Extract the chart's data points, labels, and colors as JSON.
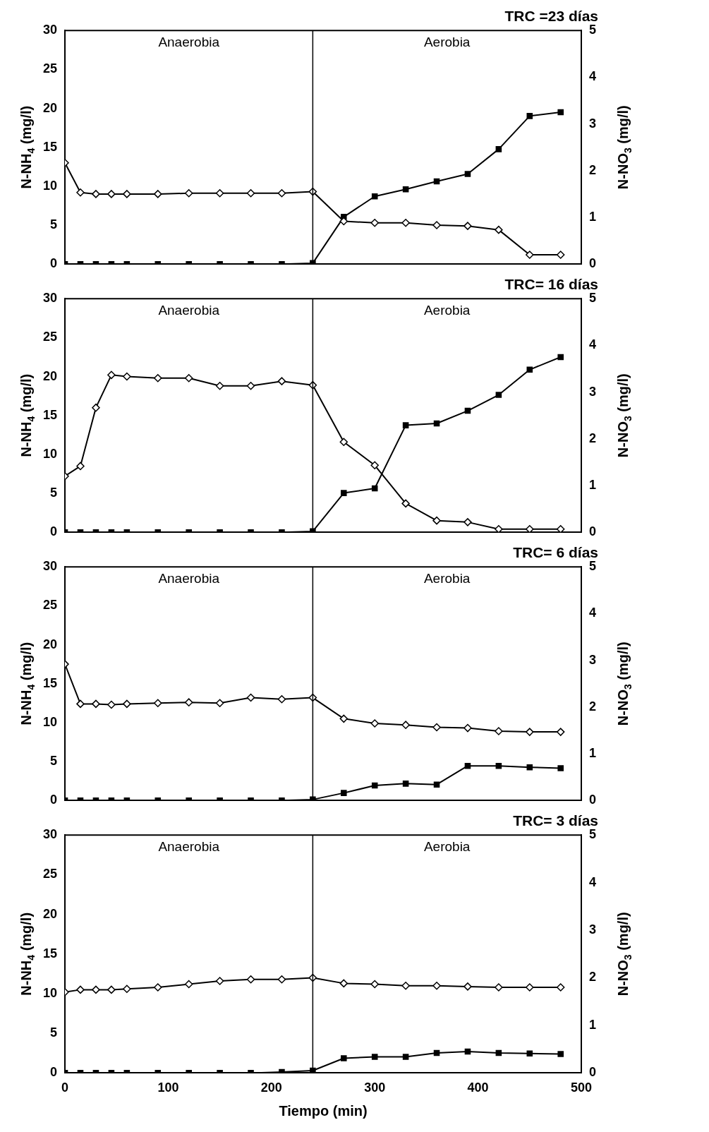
{
  "chart_data": [
    {
      "type": "line",
      "title": "TRC =23 días",
      "ylabel": "N-NH$_{4}$ (mg/l)",
      "y2label": "N-NO$_{3}$ (mg/l)",
      "x": [
        0,
        15,
        30,
        45,
        60,
        90,
        120,
        150,
        180,
        210,
        240,
        270,
        300,
        330,
        360,
        390,
        420,
        450,
        480
      ],
      "xlim": [
        0,
        500
      ],
      "xticks": [
        0,
        100,
        200,
        300,
        400,
        500
      ],
      "ylim": [
        0,
        30
      ],
      "yticks": [
        0,
        5,
        10,
        15,
        20,
        25,
        30
      ],
      "y2lim": [
        0,
        5
      ],
      "y2ticks": [
        0,
        1,
        2,
        3,
        4,
        5
      ],
      "tick_labels": "y",
      "legend": false,
      "grid": false,
      "annotations": [
        "Anaerobia",
        "Aerobia"
      ],
      "ref_lines": [
        {
          "axis": "x",
          "value": 240,
          "color": "#000000"
        }
      ],
      "series": [
        {
          "color": "#000000",
          "marker": "diamond",
          "values": [
            13,
            9.2,
            9.0,
            9.0,
            9.0,
            9.0,
            9.1,
            9.1,
            9.1,
            9.1,
            9.3,
            5.5,
            5.3,
            5.3,
            5.0,
            4.9,
            4.4,
            1.2,
            1.2
          ]
        },
        {
          "color": "#000000",
          "marker": "square",
          "axis": "y2",
          "values": [
            0,
            0,
            0,
            0,
            0,
            0,
            0,
            0,
            0,
            0,
            0.02,
            1.01,
            1.45,
            1.6,
            1.77,
            1.93,
            2.46,
            3.17,
            3.25
          ]
        }
      ]
    },
    {
      "type": "line",
      "title": "TRC= 16 días",
      "ylabel": "N-NH$_{4}$ (mg/l)",
      "y2label": "N-NO$_{3}$ (mg/l)",
      "x": [
        0,
        15,
        30,
        45,
        60,
        90,
        120,
        150,
        180,
        210,
        240,
        270,
        300,
        330,
        360,
        390,
        420,
        450,
        480
      ],
      "xlim": [
        0,
        500
      ],
      "xticks": [
        0,
        100,
        200,
        300,
        400,
        500
      ],
      "ylim": [
        0,
        30
      ],
      "yticks": [
        0,
        5,
        10,
        15,
        20,
        25,
        30
      ],
      "y2lim": [
        0,
        5
      ],
      "y2ticks": [
        0,
        1,
        2,
        3,
        4,
        5
      ],
      "tick_labels": "y",
      "legend": false,
      "grid": false,
      "annotations": [
        "Anaerobia",
        "Aerobia"
      ],
      "ref_lines": [
        {
          "axis": "x",
          "value": 240,
          "color": "#000000"
        }
      ],
      "series": [
        {
          "color": "#000000",
          "marker": "diamond",
          "values": [
            7.2,
            8.5,
            16,
            20.2,
            20,
            19.8,
            19.8,
            18.8,
            18.8,
            19.4,
            18.9,
            11.6,
            8.6,
            3.7,
            1.5,
            1.3,
            0.4,
            0.4,
            0.4
          ]
        },
        {
          "color": "#000000",
          "marker": "square",
          "axis": "y2",
          "values": [
            0,
            0,
            0,
            0,
            0,
            0,
            0,
            0,
            0,
            0,
            0.02,
            0.84,
            0.94,
            2.29,
            2.33,
            2.6,
            2.94,
            3.48,
            3.75
          ]
        }
      ]
    },
    {
      "type": "line",
      "title": "TRC= 6 días",
      "ylabel": "N-NH$_{4}$ (mg/l)",
      "y2label": "N-NO$_{3}$ (mg/l)",
      "x": [
        0,
        15,
        30,
        45,
        60,
        90,
        120,
        150,
        180,
        210,
        240,
        270,
        300,
        330,
        360,
        390,
        420,
        450,
        480
      ],
      "xlim": [
        0,
        500
      ],
      "xticks": [
        0,
        100,
        200,
        300,
        400,
        500
      ],
      "ylim": [
        0,
        30
      ],
      "yticks": [
        0,
        5,
        10,
        15,
        20,
        25,
        30
      ],
      "y2lim": [
        0,
        5
      ],
      "y2ticks": [
        0,
        1,
        2,
        3,
        4,
        5
      ],
      "tick_labels": "y",
      "legend": false,
      "grid": false,
      "annotations": [
        "Anaerobia",
        "Aerobia"
      ],
      "ref_lines": [
        {
          "axis": "x",
          "value": 240,
          "color": "#000000"
        }
      ],
      "series": [
        {
          "color": "#000000",
          "marker": "diamond",
          "values": [
            17.5,
            12.4,
            12.4,
            12.3,
            12.4,
            12.5,
            12.6,
            12.5,
            13.2,
            13.0,
            13.2,
            10.5,
            9.9,
            9.7,
            9.4,
            9.3,
            8.9,
            8.8,
            8.8
          ]
        },
        {
          "color": "#000000",
          "marker": "square",
          "axis": "y2",
          "values": [
            0,
            0,
            0,
            0,
            0,
            0,
            0,
            0,
            0,
            0,
            0.02,
            0.16,
            0.32,
            0.36,
            0.34,
            0.74,
            0.74,
            0.71,
            0.69
          ]
        }
      ]
    },
    {
      "type": "line",
      "title": "TRC= 3 días",
      "xlabel": "Tiempo (min)",
      "ylabel": "N-NH$_{4}$ (mg/l)",
      "y2label": "N-NO$_{3}$ (mg/l)",
      "x": [
        0,
        15,
        30,
        45,
        60,
        90,
        120,
        150,
        180,
        210,
        240,
        270,
        300,
        330,
        360,
        390,
        420,
        450,
        480
      ],
      "xlim": [
        0,
        500
      ],
      "xticks": [
        0,
        100,
        200,
        300,
        400,
        500
      ],
      "ylim": [
        0,
        30
      ],
      "yticks": [
        0,
        5,
        10,
        15,
        20,
        25,
        30
      ],
      "y2lim": [
        0,
        5
      ],
      "y2ticks": [
        0,
        1,
        2,
        3,
        4,
        5
      ],
      "legend": false,
      "grid": false,
      "annotations": [
        "Anaerobia",
        "Aerobia"
      ],
      "ref_lines": [
        {
          "axis": "x",
          "value": 240,
          "color": "#000000"
        }
      ],
      "series": [
        {
          "color": "#000000",
          "marker": "diamond",
          "values": [
            10.2,
            10.5,
            10.5,
            10.5,
            10.6,
            10.8,
            11.2,
            11.6,
            11.8,
            11.8,
            12.0,
            11.3,
            11.2,
            11.0,
            11.0,
            10.9,
            10.8,
            10.8,
            10.8
          ]
        },
        {
          "color": "#000000",
          "marker": "square",
          "axis": "y2",
          "values": [
            0,
            0,
            0,
            0,
            0,
            0,
            0,
            0,
            0,
            0.02,
            0.05,
            0.31,
            0.34,
            0.34,
            0.42,
            0.45,
            0.42,
            0.41,
            0.4
          ]
        }
      ]
    }
  ]
}
